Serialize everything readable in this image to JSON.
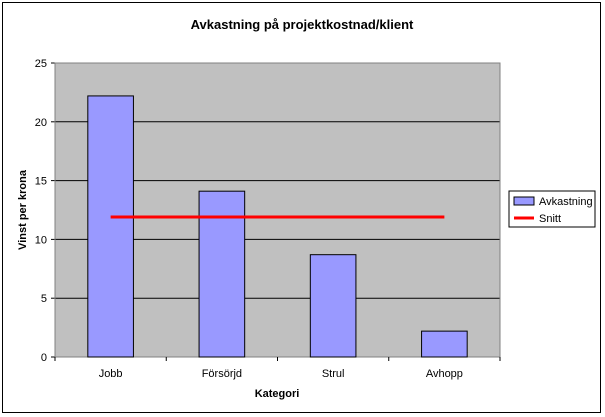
{
  "chart_data": {
    "type": "bar",
    "title": "Avkastning på projektkostnad/klient",
    "xlabel": "Kategori",
    "ylabel": "Vinst per krona",
    "categories": [
      "Jobb",
      "Försörjd",
      "Strul",
      "Avhopp"
    ],
    "ylim": [
      0,
      25
    ],
    "yticks": [
      0,
      5,
      10,
      15,
      20,
      25
    ],
    "grid": true,
    "legend_position": "right",
    "series": [
      {
        "name": "Avkastning",
        "type": "bar",
        "values": [
          22.2,
          14.1,
          8.7,
          2.2
        ],
        "color": "#9999ff"
      },
      {
        "name": "Snitt",
        "type": "line",
        "values": [
          11.9,
          11.9,
          11.9,
          11.9
        ],
        "color": "#ff0000"
      }
    ],
    "plot_background": "#c0c0c0"
  }
}
